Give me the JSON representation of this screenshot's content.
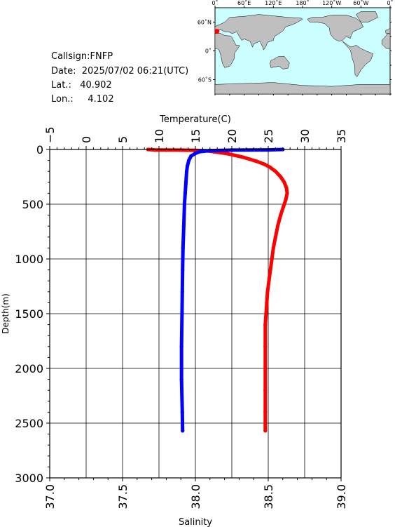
{
  "info": {
    "callsign": "Callsign:FNFP",
    "date": "Date:  2025/07/02 06:21(UTC)",
    "lat": "Lat.:   40.902",
    "lon": "Lon.:     4.102"
  },
  "map": {
    "top_labels": [
      "0˚",
      "60˚E",
      "120˚E",
      "180˚",
      "120˚W",
      "60˚W",
      "0˚"
    ],
    "left_labels": [
      "60˚N",
      "0˚",
      "60˚S"
    ],
    "ocean_color": "#ccffff",
    "land_color": "#bfbfbf",
    "marker_color": "#ff0000",
    "marker": {
      "lon": 4.102,
      "lat": 40.902
    }
  },
  "chart_data": {
    "type": "line",
    "title": "",
    "ylabel": "Depth(m)",
    "xlabel_top": "Temperature(C)",
    "xlabel_bottom": "Salinity",
    "ylim": [
      0,
      3000
    ],
    "y_inverted": true,
    "yticks": [
      0,
      500,
      1000,
      1500,
      2000,
      2500,
      3000
    ],
    "xlim_top": [
      -5,
      35
    ],
    "xticks_top": [
      -5,
      0,
      5,
      10,
      15,
      20,
      25,
      30,
      35
    ],
    "xlim_bottom": [
      37.0,
      39.0
    ],
    "xticks_bottom": [
      "37.0",
      "37.5",
      "38.0",
      "38.5",
      "39.0"
    ],
    "grid": true,
    "series": [
      {
        "axis": "top",
        "color": "#ff0000",
        "points": [
          [
            8.5,
            0
          ],
          [
            9.5,
            5
          ],
          [
            11,
            5
          ],
          [
            13,
            6
          ],
          [
            15,
            8
          ],
          [
            16.5,
            12
          ],
          [
            17.5,
            20
          ],
          [
            18.5,
            30
          ],
          [
            19.5,
            40
          ],
          [
            20.5,
            55
          ],
          [
            21.5,
            70
          ],
          [
            22.5,
            90
          ],
          [
            23.5,
            110
          ],
          [
            24.5,
            135
          ],
          [
            25.3,
            165
          ],
          [
            26,
            200
          ],
          [
            26.7,
            250
          ],
          [
            27.2,
            300
          ],
          [
            27.5,
            350
          ],
          [
            27.6,
            400
          ],
          [
            27.4,
            460
          ],
          [
            27.1,
            520
          ],
          [
            26.7,
            600
          ],
          [
            26.3,
            700
          ],
          [
            26,
            800
          ],
          [
            25.7,
            900
          ],
          [
            25.5,
            1000
          ],
          [
            25.3,
            1100
          ],
          [
            25.1,
            1200
          ],
          [
            24.9,
            1300
          ],
          [
            24.8,
            1400
          ],
          [
            24.7,
            1500
          ],
          [
            24.6,
            1600
          ],
          [
            24.6,
            1800
          ],
          [
            24.6,
            2000
          ],
          [
            24.6,
            2200
          ],
          [
            24.6,
            2400
          ],
          [
            24.6,
            2570
          ]
        ]
      },
      {
        "axis": "bottom",
        "color": "#0000ff",
        "points": [
          [
            38.6,
            0
          ],
          [
            38.5,
            4
          ],
          [
            38.25,
            6
          ],
          [
            38.1,
            10
          ],
          [
            38.03,
            20
          ],
          [
            38.0,
            35
          ],
          [
            37.97,
            60
          ],
          [
            37.955,
            100
          ],
          [
            37.945,
            150
          ],
          [
            37.94,
            200
          ],
          [
            37.935,
            300
          ],
          [
            37.93,
            400
          ],
          [
            37.925,
            500
          ],
          [
            37.92,
            700
          ],
          [
            37.915,
            900
          ],
          [
            37.912,
            1100
          ],
          [
            37.91,
            1300
          ],
          [
            37.908,
            1500
          ],
          [
            37.905,
            1800
          ],
          [
            37.905,
            2100
          ],
          [
            37.91,
            2400
          ],
          [
            37.912,
            2570
          ]
        ]
      }
    ]
  }
}
